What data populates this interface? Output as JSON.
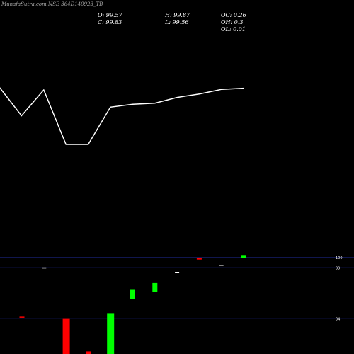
{
  "header": {
    "title": "MunafaSutra.com NSE 364D140923_TB",
    "open_label": "O: 99.57",
    "close_label": "C: 99.83",
    "high_label": "H: 99.87",
    "low_label": "L: 99.56",
    "oc_label": "OC: 0.26",
    "oh_label": "OH: 0.3",
    "ol_label": "OL: 0.01"
  },
  "colors": {
    "background": "#000000",
    "up": "#00ff00",
    "down": "#ff0000",
    "line": "#ffffff",
    "grid": "#1a237e"
  },
  "chart_data": [
    {
      "type": "line",
      "title": "",
      "x": [
        1,
        2,
        3,
        4,
        5,
        6,
        7,
        8,
        9,
        10,
        11,
        12
      ],
      "series": [
        {
          "values": [
            99.6,
            99.1,
            99.55,
            98.6,
            98.6,
            99.25,
            99.3,
            99.32,
            99.42,
            99.48,
            99.56,
            99.58
          ]
        }
      ],
      "grid": false
    },
    {
      "type": "bar",
      "title": "",
      "y_tick_labels": [
        "100",
        "99",
        "94"
      ],
      "y_ticks": [
        100,
        99,
        94
      ],
      "ylim": [
        90.2,
        105.2
      ],
      "categories": [
        1,
        2,
        3,
        4,
        5,
        6,
        7,
        8,
        9,
        10,
        11
      ],
      "open": [
        94.2,
        99.03,
        94.05,
        90.8,
        90.15,
        95.9,
        96.6,
        98.6,
        99.97,
        99.2,
        99.95
      ],
      "close": [
        94.2,
        99.03,
        90.15,
        90.5,
        94.55,
        96.9,
        97.5,
        98.6,
        99.8,
        99.3,
        100.25
      ],
      "direction": [
        "down",
        "flat",
        "down",
        "down",
        "up",
        "up",
        "up",
        "flat",
        "down",
        "flat",
        "up"
      ],
      "grid": true
    }
  ]
}
